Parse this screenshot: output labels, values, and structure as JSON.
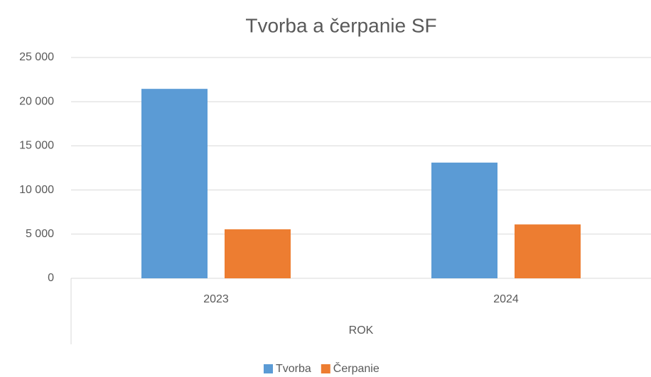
{
  "chart_data": {
    "type": "bar",
    "title": "Tvorba a čerpanie SF",
    "categories": [
      "2023",
      "2024"
    ],
    "series": [
      {
        "name": "Tvorba",
        "color": "#5b9bd5",
        "values": [
          21450,
          13100
        ]
      },
      {
        "name": "Čerpanie",
        "color": "#ed7d31",
        "values": [
          5550,
          6100
        ]
      }
    ],
    "x_label": "ROK",
    "ylim": [
      0,
      25000
    ],
    "yticks": [
      0,
      {
        "value": 5000,
        "label": "5 000"
      },
      {
        "value": 10000,
        "label": "10 000"
      },
      {
        "value": 15000,
        "label": "15 000"
      },
      {
        "value": 20000,
        "label": "20 000"
      },
      {
        "value": 25000,
        "label": "25 000"
      }
    ],
    "grid": true,
    "legend": "bottom"
  }
}
